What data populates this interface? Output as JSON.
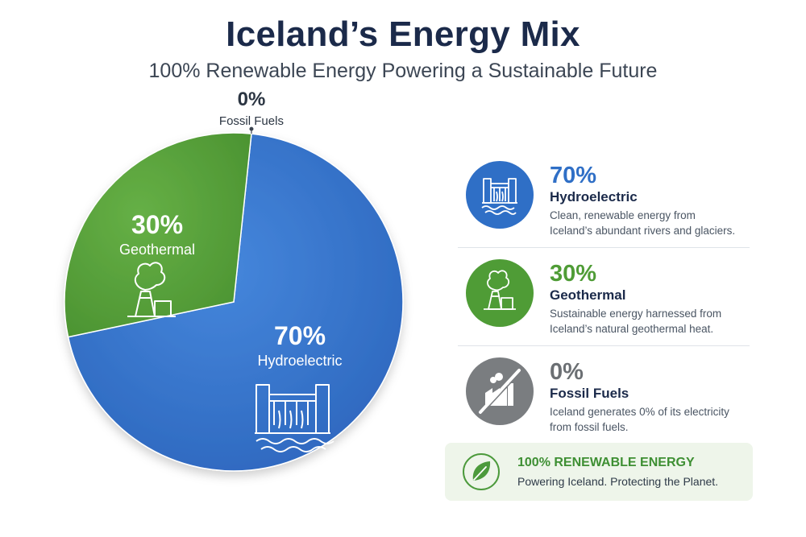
{
  "header": {
    "title": "Iceland’s Energy Mix",
    "subtitle": "100% Renewable Energy Powering a Sustainable Future"
  },
  "chart_data": {
    "type": "pie",
    "title": "Iceland’s Energy Mix",
    "subtitle": "100% Renewable Energy Powering a Sustainable Future",
    "slices": [
      {
        "label": "Hydroelectric",
        "value": 70,
        "display": "70%",
        "color": "#3a77cc"
      },
      {
        "label": "Geothermal",
        "value": 30,
        "display": "30%",
        "color": "#5aa43a"
      },
      {
        "label": "Fossil Fuels",
        "value": 0,
        "display": "0%",
        "color": "#7d7d7d"
      }
    ]
  },
  "legend": {
    "items": [
      {
        "pct": "70%",
        "name": "Hydroelectric",
        "desc1": "Clean, renewable energy from",
        "desc2": "Iceland’s abundant rivers and glaciers.",
        "color": "#2f6fc6",
        "icon": "dam-icon"
      },
      {
        "pct": "30%",
        "name": "Geothermal",
        "desc1": "Sustainable energy harnessed from",
        "desc2": "Iceland’s natural geothermal heat.",
        "color": "#4f9c36",
        "icon": "geothermal-plant-icon"
      },
      {
        "pct": "0%",
        "name": "Fossil Fuels",
        "desc1": "Iceland generates 0% of its electricity",
        "desc2": "from fossil fuels.",
        "color": "#7a7d80",
        "icon": "no-factory-icon"
      }
    ]
  },
  "banner": {
    "title": "100% RENEWABLE ENERGY",
    "subtitle": "Powering Iceland. Protecting the Planet.",
    "icon": "leaf-icon"
  }
}
